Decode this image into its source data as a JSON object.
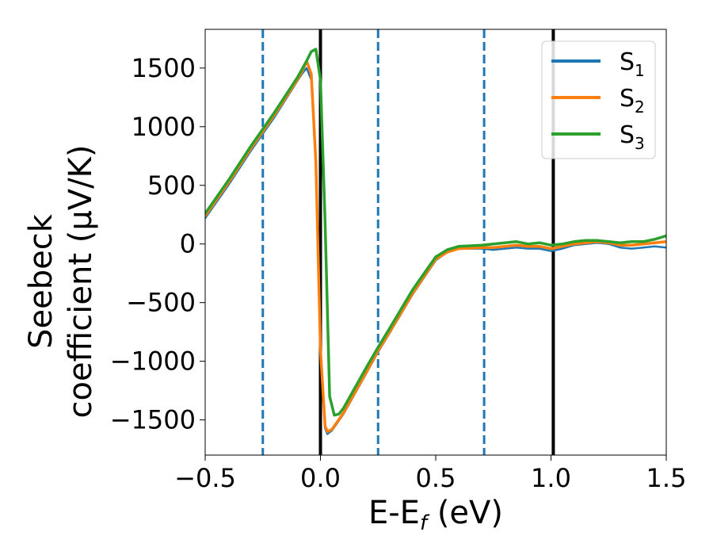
{
  "chart_data": {
    "type": "line",
    "title": "",
    "xlabel": {
      "base": "E-E",
      "sub": "f",
      "rest": " (eV)"
    },
    "ylabel": {
      "line1": "Seebeck",
      "line2": "coefficient  (μV/K)"
    },
    "xlim": [
      -0.5,
      1.5
    ],
    "ylim": [
      -1800,
      1830
    ],
    "xticks": [
      -0.5,
      0.0,
      0.5,
      1.0,
      1.5
    ],
    "xtick_labels": [
      "−0.5",
      "0.0",
      "0.5",
      "1.0",
      "1.5"
    ],
    "yticks": [
      -1500,
      -1000,
      -500,
      0,
      500,
      1000,
      1500
    ],
    "ytick_labels": [
      "−1500",
      "−1000",
      "−500",
      "0",
      "500",
      "1000",
      "1500"
    ],
    "grid": false,
    "legend_position": "top-right",
    "vlines": [
      {
        "x": -0.25,
        "style": "dashed",
        "color": "#1f77b4"
      },
      {
        "x": 0.0,
        "style": "solid",
        "color": "#000000"
      },
      {
        "x": 0.25,
        "style": "dashed",
        "color": "#1f77b4"
      },
      {
        "x": 0.71,
        "style": "dashed",
        "color": "#1f77b4"
      },
      {
        "x": 1.01,
        "style": "solid",
        "color": "#000000"
      }
    ],
    "series": [
      {
        "name": "S",
        "sub": "1",
        "color": "#1f77b4",
        "x": [
          -0.5,
          -0.4,
          -0.3,
          -0.25,
          -0.2,
          -0.1,
          -0.08,
          -0.06,
          -0.04,
          -0.02,
          0.0,
          0.02,
          0.03,
          0.05,
          0.1,
          0.2,
          0.25,
          0.3,
          0.4,
          0.5,
          0.55,
          0.6,
          0.7,
          0.75,
          0.8,
          0.85,
          0.9,
          0.95,
          1.0,
          1.05,
          1.1,
          1.15,
          1.2,
          1.25,
          1.3,
          1.35,
          1.4,
          1.45,
          1.5
        ],
        "y": [
          220,
          500,
          800,
          940,
          1080,
          1390,
          1450,
          1500,
          1400,
          700,
          -900,
          -1570,
          -1620,
          -1590,
          -1450,
          -1100,
          -920,
          -760,
          -430,
          -140,
          -70,
          -40,
          -40,
          -50,
          -40,
          -30,
          -40,
          -40,
          -60,
          -40,
          -10,
          0,
          10,
          0,
          -30,
          -40,
          -30,
          -20,
          -30
        ]
      },
      {
        "name": "S",
        "sub": "2",
        "color": "#ff7f0e",
        "x": [
          -0.5,
          -0.4,
          -0.3,
          -0.25,
          -0.2,
          -0.1,
          -0.08,
          -0.06,
          -0.04,
          -0.02,
          0.0,
          0.02,
          0.03,
          0.05,
          0.1,
          0.2,
          0.25,
          0.3,
          0.4,
          0.5,
          0.55,
          0.6,
          0.7,
          0.75,
          0.8,
          0.85,
          0.9,
          0.95,
          1.0,
          1.05,
          1.1,
          1.15,
          1.2,
          1.25,
          1.3,
          1.35,
          1.4,
          1.45,
          1.5
        ],
        "y": [
          240,
          520,
          820,
          960,
          1100,
          1400,
          1470,
          1560,
          1450,
          700,
          -900,
          -1550,
          -1600,
          -1580,
          -1440,
          -1090,
          -910,
          -750,
          -420,
          -130,
          -70,
          -40,
          -30,
          -30,
          -20,
          -10,
          -20,
          -20,
          -40,
          -20,
          0,
          10,
          20,
          10,
          -10,
          -10,
          0,
          10,
          20
        ]
      },
      {
        "name": "S",
        "sub": "3",
        "color": "#2ca02c",
        "x": [
          -0.5,
          -0.4,
          -0.3,
          -0.25,
          -0.2,
          -0.1,
          -0.08,
          -0.06,
          -0.04,
          -0.02,
          0.0,
          0.02,
          0.04,
          0.06,
          0.08,
          0.1,
          0.2,
          0.25,
          0.3,
          0.4,
          0.5,
          0.55,
          0.6,
          0.7,
          0.75,
          0.8,
          0.85,
          0.9,
          0.95,
          1.0,
          1.05,
          1.1,
          1.15,
          1.2,
          1.25,
          1.3,
          1.35,
          1.4,
          1.45,
          1.5
        ],
        "y": [
          260,
          540,
          840,
          980,
          1120,
          1420,
          1490,
          1560,
          1640,
          1660,
          1400,
          200,
          -1300,
          -1460,
          -1450,
          -1400,
          -1050,
          -880,
          -720,
          -390,
          -110,
          -50,
          -20,
          -10,
          0,
          10,
          20,
          0,
          10,
          -10,
          0,
          20,
          30,
          30,
          20,
          10,
          20,
          20,
          40,
          70
        ]
      }
    ]
  }
}
